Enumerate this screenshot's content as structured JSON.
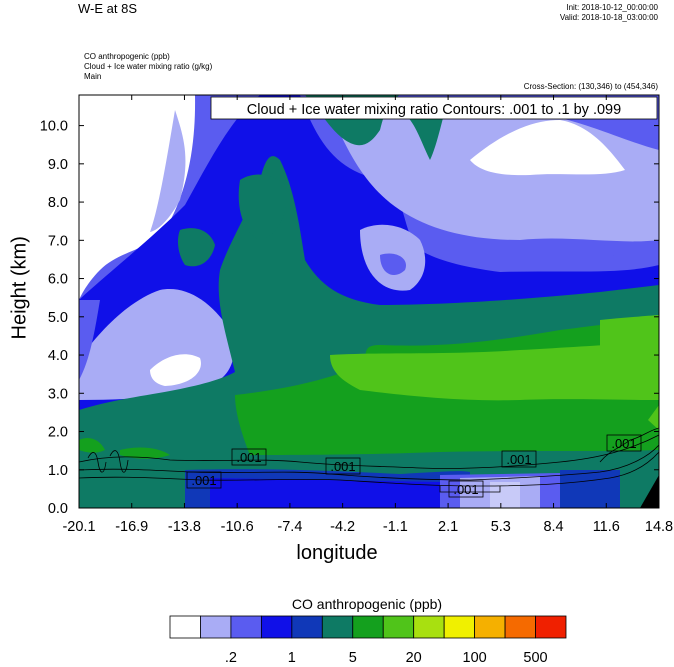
{
  "header": {
    "title": "W-E at 8S",
    "init": "Init: 2018-10-12_00:00:00",
    "valid": "Valid: 2018-10-18_03:00:00",
    "var1": "CO anthropogenic   (ppb)",
    "var2": "Cloud + Ice water mixing ratio   (g/kg)",
    "var3": "Main",
    "cross_section": "Cross-Section: (130,346) to (454,346)"
  },
  "chart_data": {
    "type": "heatmap",
    "title": "W-E at 8S",
    "xlabel": "longitude",
    "ylabel": "Height (km)",
    "xlim": [
      -20.1,
      14.8
    ],
    "ylim": [
      0.0,
      10.8
    ],
    "x_ticks": [
      "-20.1",
      "-16.9",
      "-13.8",
      "-10.6",
      "-7.4",
      "-4.2",
      "-1.1",
      "2.1",
      "5.3",
      "8.4",
      "11.6",
      "14.8"
    ],
    "y_ticks": [
      "0.0",
      "1.0",
      "2.0",
      "3.0",
      "4.0",
      "5.0",
      "6.0",
      "7.0",
      "8.0",
      "9.0",
      "10.0"
    ],
    "contour_note": "Cloud + Ice water mixing ratio Contours: .001 to .1 by .099",
    "contour_labels": [
      ".001",
      ".001",
      ".001",
      ".001",
      ".001",
      ".001"
    ],
    "colorbar": {
      "title": "CO anthropogenic  (ppb)",
      "levels": [
        ".2",
        "1",
        "5",
        "20",
        "100",
        "500"
      ],
      "colors": [
        "#ffffff",
        "#a9acf5",
        "#5a5cf0",
        "#1010e8",
        "#1038b8",
        "#0e7a64",
        "#14a01e",
        "#50c41a",
        "#a8e010",
        "#f0f000",
        "#f5b000",
        "#f56a00",
        "#f02000"
      ]
    }
  }
}
